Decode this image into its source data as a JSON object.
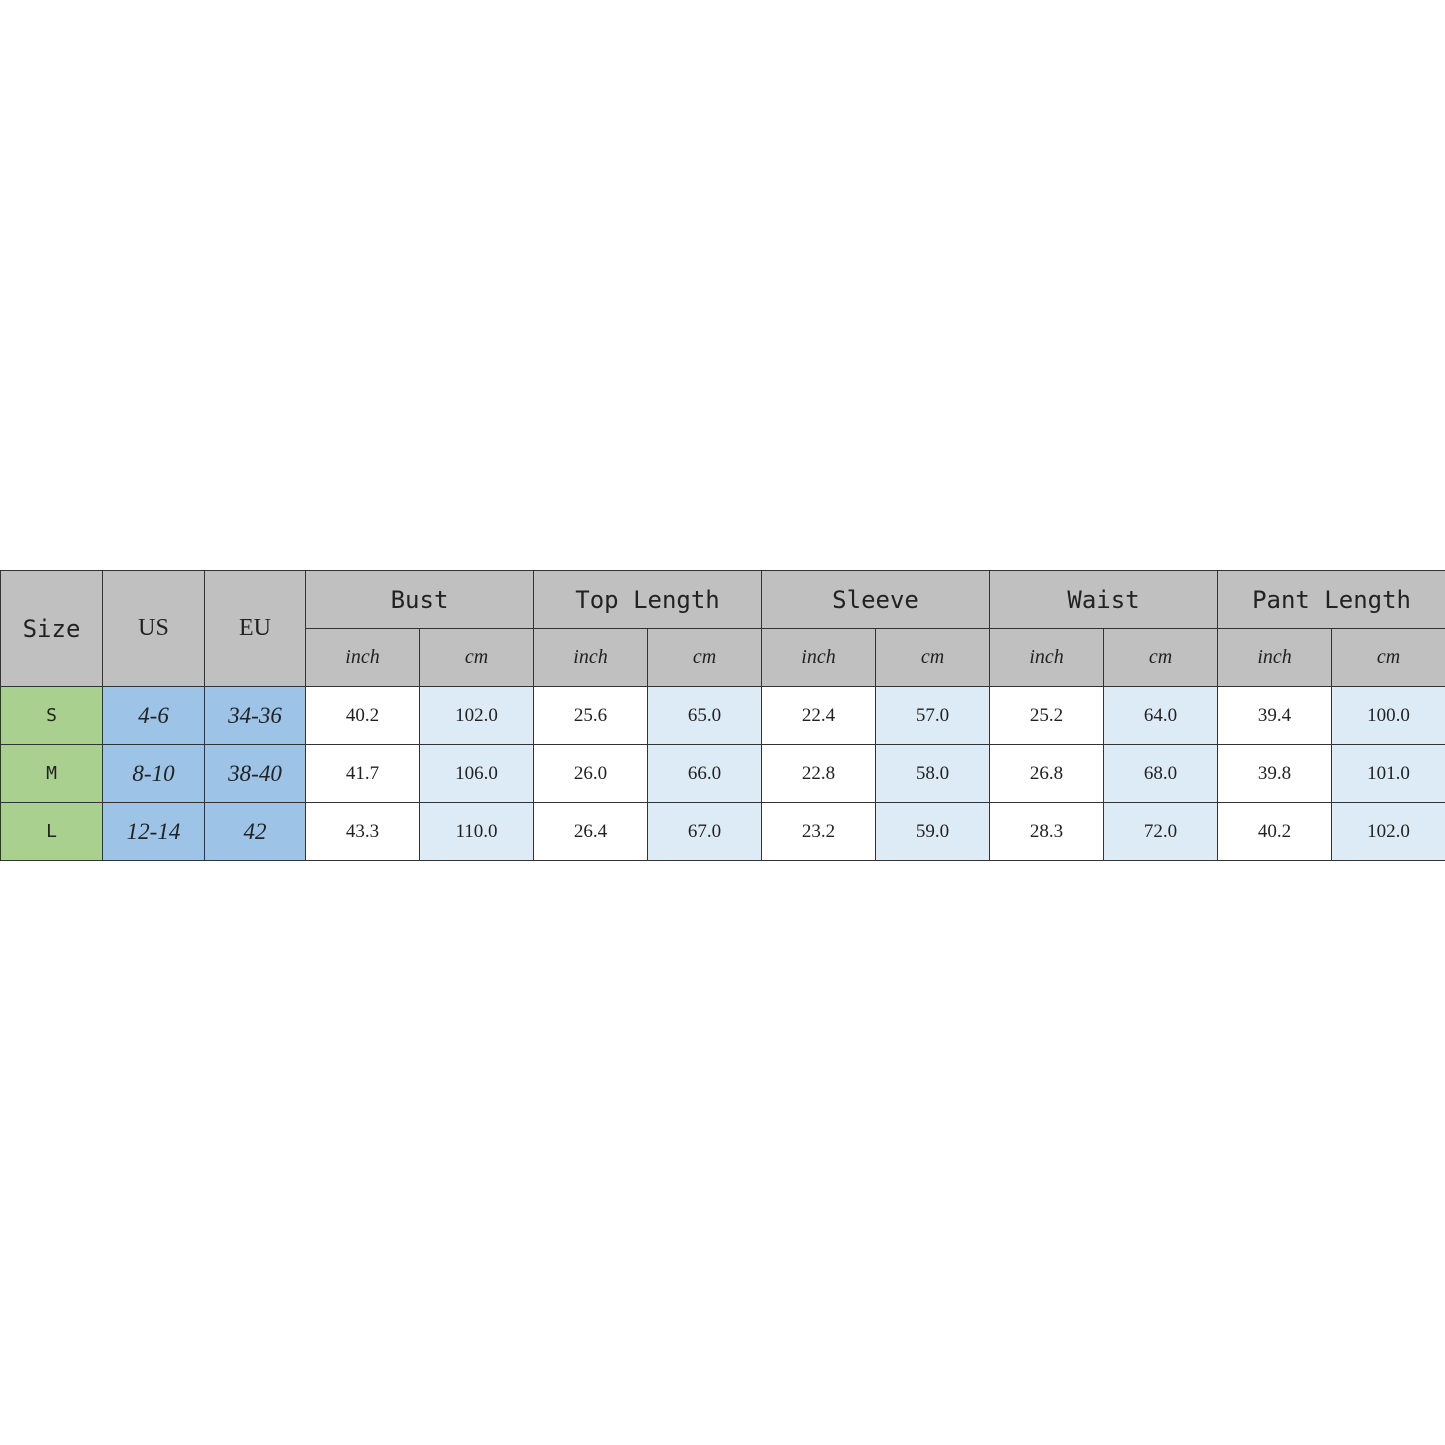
{
  "colors": {
    "header": "#c0c0c0",
    "size": "#a9d08e",
    "conversion": "#9dc3e6",
    "cm": "#ddebf7",
    "inch": "#ffffff"
  },
  "headers": {
    "size": "Size",
    "us": "US",
    "eu": "EU",
    "groups": [
      "Bust",
      "Top Length",
      "Sleeve",
      "Waist",
      "Pant Length"
    ],
    "units": [
      "inch",
      "cm"
    ]
  },
  "rows": [
    {
      "size": "S",
      "us": "4-6",
      "eu": "34-36",
      "values": [
        "40.2",
        "102.0",
        "25.6",
        "65.0",
        "22.4",
        "57.0",
        "25.2",
        "64.0",
        "39.4",
        "100.0"
      ]
    },
    {
      "size": "M",
      "us": "8-10",
      "eu": "38-40",
      "values": [
        "41.7",
        "106.0",
        "26.0",
        "66.0",
        "22.8",
        "58.0",
        "26.8",
        "68.0",
        "39.8",
        "101.0"
      ]
    },
    {
      "size": "L",
      "us": "12-14",
      "eu": "42",
      "values": [
        "43.3",
        "110.0",
        "26.4",
        "67.0",
        "23.2",
        "59.0",
        "28.3",
        "72.0",
        "40.2",
        "102.0"
      ]
    }
  ]
}
